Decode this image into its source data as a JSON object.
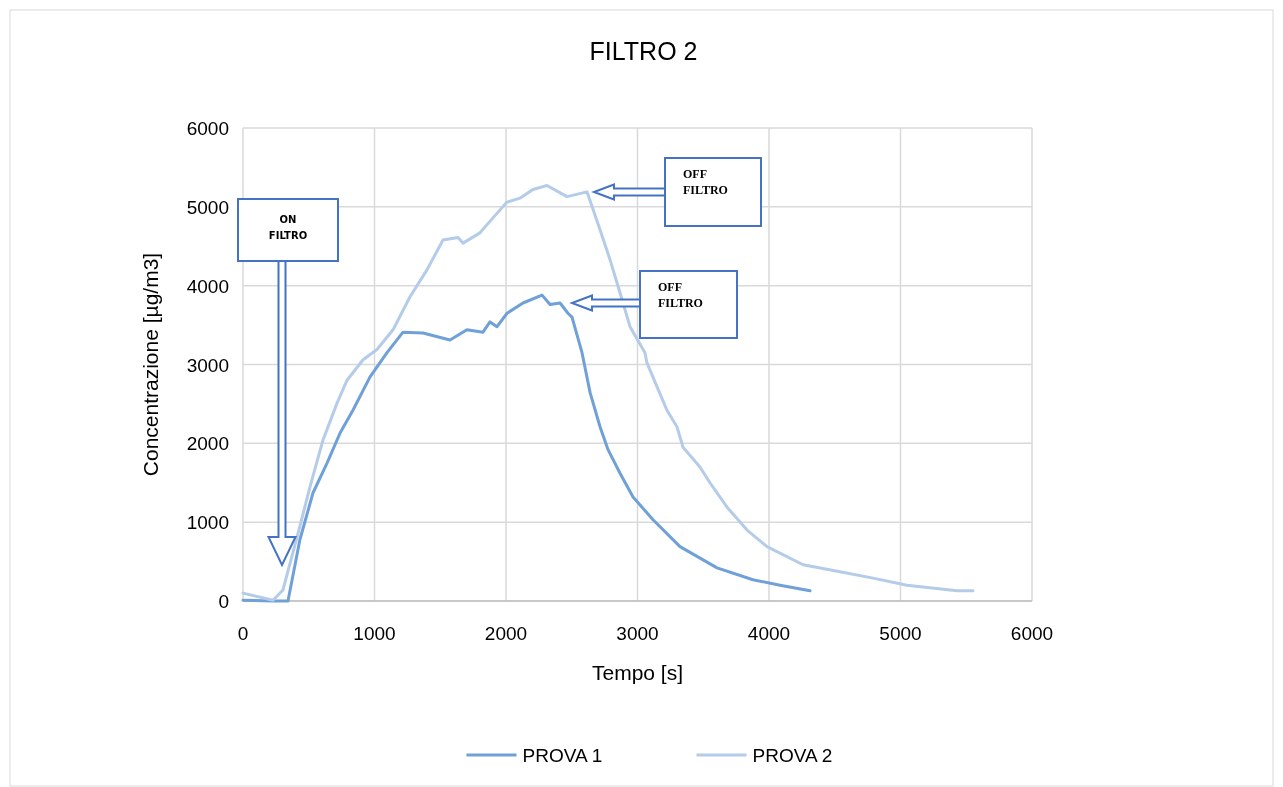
{
  "chart_data": {
    "type": "line",
    "title": "FILTRO 2",
    "xlabel": "Tempo [s]",
    "ylabel": "Concentrazione [µg/m3]",
    "xlim": [
      0,
      6000
    ],
    "xticks": [
      0,
      1000,
      2000,
      3000,
      4000,
      5000,
      6000
    ],
    "ylim": [
      0,
      6000
    ],
    "yticks": [
      0,
      1000,
      2000,
      3000,
      4000,
      5000,
      6000
    ],
    "grid": true,
    "legend": "bottom",
    "marker": "none",
    "line_style": "solid",
    "series": [
      {
        "name": "PROVA 1",
        "color": "#6fa0d8",
        "x": [
          0,
          228,
          342,
          433,
          532,
          639,
          738,
          836,
          965,
          1095,
          1217,
          1369,
          1574,
          1703,
          1825,
          1878,
          1932,
          2008,
          2129,
          2274,
          2335,
          2411,
          2471,
          2502,
          2578,
          2640,
          2715,
          2776,
          2867,
          2966,
          3118,
          3323,
          3605,
          3878,
          4084,
          4312
        ],
        "values": [
          10,
          0,
          0,
          780,
          1370,
          1750,
          2130,
          2420,
          2840,
          3150,
          3410,
          3400,
          3310,
          3440,
          3410,
          3540,
          3480,
          3650,
          3780,
          3880,
          3760,
          3780,
          3650,
          3600,
          3150,
          2640,
          2210,
          1920,
          1620,
          1320,
          1030,
          690,
          420,
          270,
          200,
          130
        ]
      },
      {
        "name": "PROVA 2",
        "color": "#b4cce9",
        "x": [
          0,
          228,
          304,
          411,
          510,
          608,
          715,
          791,
          913,
          1019,
          1141,
          1270,
          1399,
          1521,
          1635,
          1673,
          1802,
          1901,
          2008,
          2106,
          2205,
          2312,
          2464,
          2616,
          2715,
          2791,
          2867,
          2943,
          3057,
          3072,
          3148,
          3224,
          3300,
          3346,
          3475,
          3551,
          3681,
          3833,
          3985,
          4259,
          4540,
          4791,
          5049,
          5430,
          5551
        ],
        "values": [
          100,
          10,
          140,
          810,
          1450,
          2040,
          2510,
          2800,
          3060,
          3190,
          3440,
          3860,
          4200,
          4580,
          4610,
          4540,
          4670,
          4860,
          5060,
          5110,
          5220,
          5270,
          5130,
          5190,
          4710,
          4330,
          3910,
          3480,
          3150,
          3020,
          2720,
          2420,
          2210,
          1950,
          1700,
          1500,
          1190,
          900,
          690,
          460,
          370,
          290,
          200,
          130,
          130
        ]
      }
    ],
    "annotations": [
      "ON FILTRO",
      "OFF FILTRO",
      "OFF FILTRO"
    ]
  }
}
